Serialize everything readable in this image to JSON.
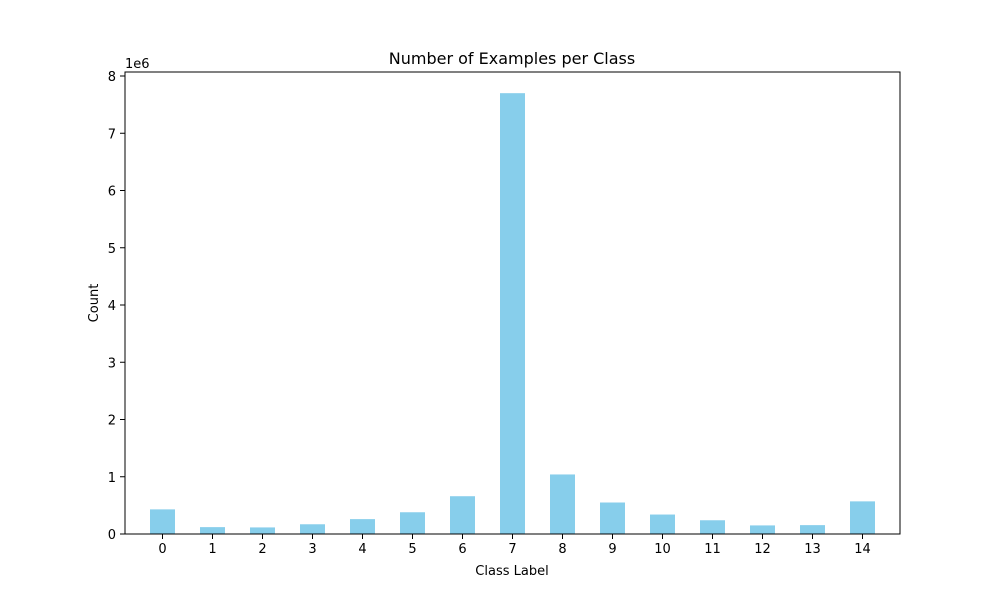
{
  "chart_data": {
    "type": "bar",
    "title": "Number of Examples per Class",
    "xlabel": "Class Label",
    "ylabel": "Count",
    "offset_label": "1e6",
    "categories": [
      "0",
      "1",
      "2",
      "3",
      "4",
      "5",
      "6",
      "7",
      "8",
      "9",
      "10",
      "11",
      "12",
      "13",
      "14"
    ],
    "values": [
      430000,
      120000,
      115000,
      170000,
      260000,
      380000,
      660000,
      7700000,
      1040000,
      550000,
      340000,
      240000,
      150000,
      155000,
      570000
    ],
    "yticks": [
      0,
      1000000,
      2000000,
      3000000,
      4000000,
      5000000,
      6000000,
      7000000,
      8000000
    ],
    "ytick_labels": [
      "0",
      "1",
      "2",
      "3",
      "4",
      "5",
      "6",
      "7",
      "8"
    ],
    "ylim": [
      0,
      8070000
    ],
    "bar_color": "#87ceeb",
    "grid": false,
    "legend": "none"
  }
}
